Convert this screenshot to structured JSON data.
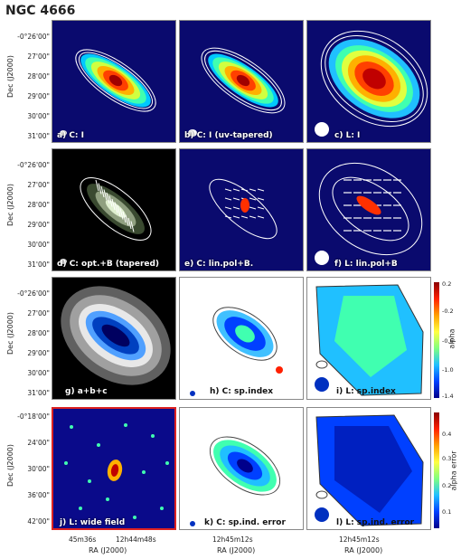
{
  "figure_title": "NGC 4666",
  "panel_labels": {
    "a": "a) C: I",
    "b": "b) C: I (uv-tapered)",
    "c": "c) L: I",
    "d": "d) C: opt.+B (tapered)",
    "e": "e) C: lin.pol+B.",
    "f": "f) L: lin.pol+B",
    "g": "g)  a+b+c",
    "h": "h) C: sp.index",
    "i": "i) L: sp.index",
    "j": "j) L: wide field",
    "k": "k) C: sp.ind. error",
    "l": "l) L: sp.ind. error"
  },
  "y_axis_label": "Dec (J2000)",
  "x_axis_label": "RA (J2000)",
  "y_ticks_top": [
    "-0°26'00\"",
    "27'00\"",
    "28'00\"",
    "29'00\"",
    "30'00\"",
    "31'00\""
  ],
  "y_ticks_wide": [
    "-0°18'00\"",
    "24'00\"",
    "30'00\"",
    "36'00\"",
    "42'00\""
  ],
  "x_ticks_col1": [
    "45m36s",
    "12h44m48s"
  ],
  "x_ticks_col2": [
    "12h45m12s"
  ],
  "x_ticks_col3": [
    "12h45m12s"
  ],
  "colorbar_alpha": {
    "label": "alpha",
    "ticks": [
      "0.2",
      "-0.2",
      "-0.6",
      "-1.0",
      "-1.4"
    ]
  },
  "colorbar_error": {
    "label": "alpha error",
    "ticks": [
      "0.4",
      "0.3",
      "0.2",
      "0.1"
    ]
  }
}
